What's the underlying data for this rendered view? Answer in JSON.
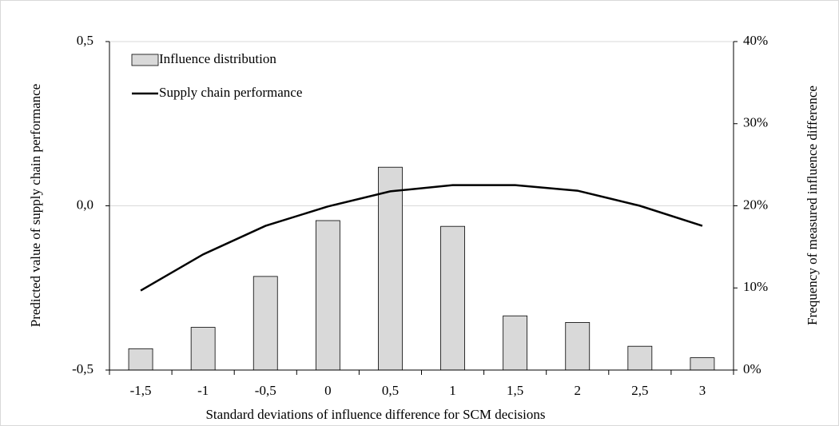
{
  "chart_data": {
    "type": "bar_line",
    "xlabel": "Standard deviations of influence difference for SCM decisions",
    "ylabel": "Predicted value of  supply chain  performance",
    "y2label": "Frequency of  measured influence difference",
    "categories": [
      "-1,5",
      "-1",
      "-0,5",
      "0",
      "0,5",
      "1",
      "1,5",
      "2",
      "2,5",
      "3"
    ],
    "series": [
      {
        "name": "Influence distribution",
        "type": "bar",
        "axis": "y2",
        "color": "#d9d9d9",
        "values": [
          2.6,
          5.2,
          11.4,
          18.2,
          24.7,
          17.5,
          6.6,
          5.8,
          2.9,
          1.5
        ]
      },
      {
        "name": "Supply chain performance",
        "type": "line",
        "axis": "y",
        "color": "#000000",
        "values": [
          -0.258,
          -0.148,
          -0.061,
          -0.002,
          0.044,
          0.063,
          0.063,
          0.046,
          0.0,
          -0.061
        ]
      }
    ],
    "ylim": [
      -0.5,
      0.5
    ],
    "yticks": [
      {
        "value": -0.5,
        "label": "-0,5"
      },
      {
        "value": 0,
        "label": "0,0"
      },
      {
        "value": 0.5,
        "label": "0,5"
      }
    ],
    "y2lim": [
      0,
      40
    ],
    "y2ticks": [
      {
        "value": 0,
        "label": "0%"
      },
      {
        "value": 10,
        "label": "10%"
      },
      {
        "value": 20,
        "label": "20%"
      },
      {
        "value": 30,
        "label": "30%"
      },
      {
        "value": 40,
        "label": "40%"
      }
    ],
    "grid": true,
    "legend": "upper left"
  }
}
